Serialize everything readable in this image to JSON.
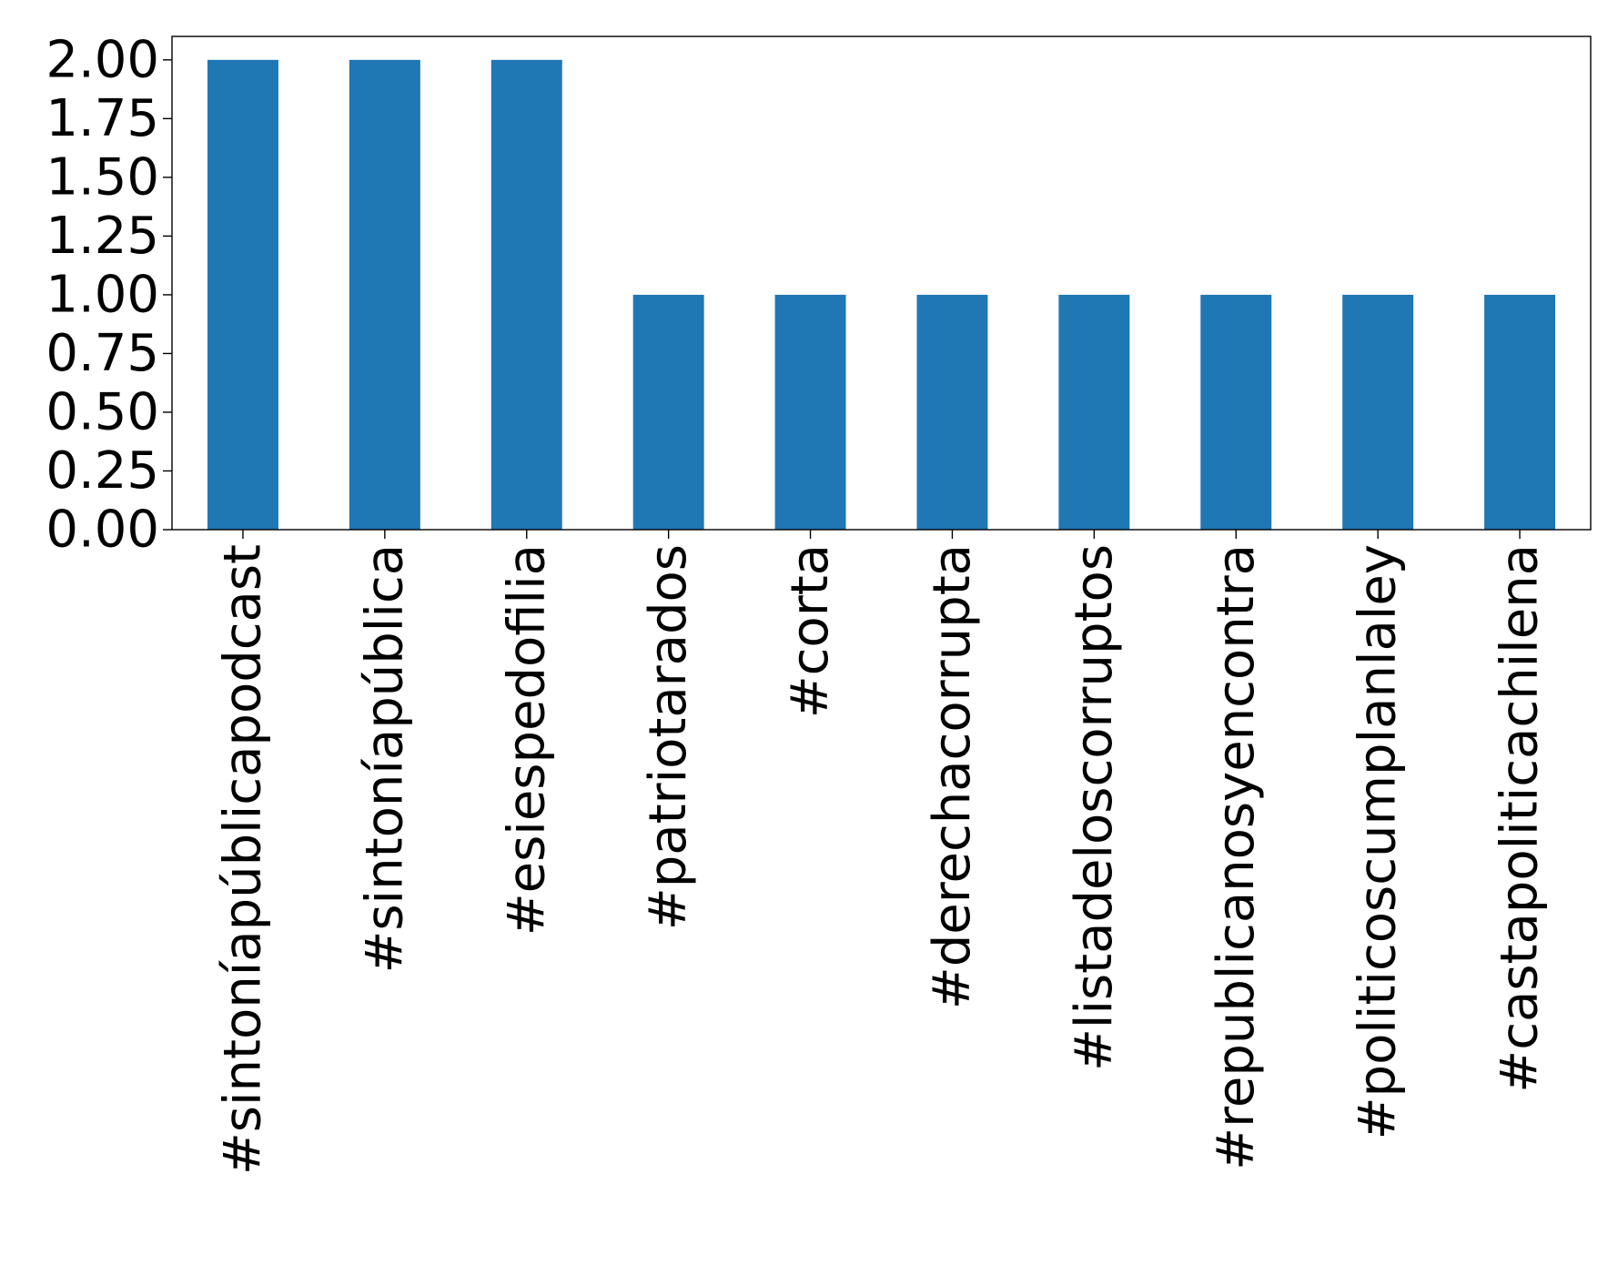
{
  "chart_data": {
    "type": "bar",
    "categories": [
      "#sintoníapúblicapodcast",
      "#sintoníapública",
      "#esiespedofilia",
      "#patriotarados",
      "#corta",
      "#derechacorrupta",
      "#listadeloscorruptos",
      "#republicanosyencontra",
      "#politicoscumplanlaley",
      "#castapoliticachilena"
    ],
    "values": [
      2,
      2,
      2,
      1,
      1,
      1,
      1,
      1,
      1,
      1
    ],
    "ylim": [
      0,
      2.1
    ],
    "yticks": [
      "0.00",
      "0.25",
      "0.50",
      "0.75",
      "1.00",
      "1.25",
      "1.50",
      "1.75",
      "2.00"
    ],
    "title": "",
    "xlabel": "",
    "ylabel": "",
    "grid": false,
    "bar_color": "#1f77b4",
    "axis_color": "#000000"
  }
}
